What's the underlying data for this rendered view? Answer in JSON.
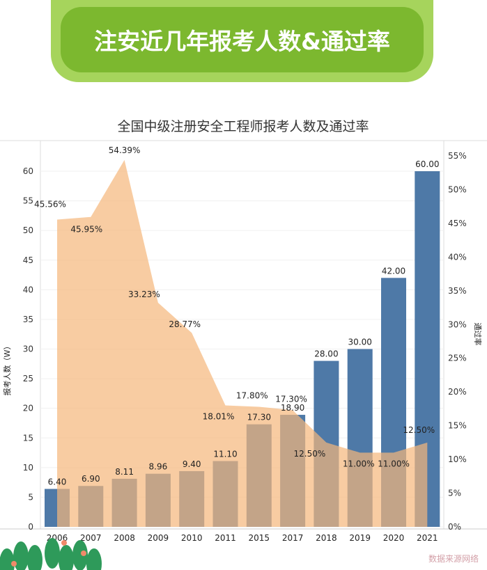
{
  "banner": {
    "title": "注安近几年报考人数&通过率"
  },
  "source": "数据来源网络",
  "chart_data": {
    "type": "bar+area",
    "title": "全国中级注册安全工程师报考人数及通过率",
    "categories": [
      "2006",
      "2007",
      "2008",
      "2009",
      "2010",
      "2011",
      "2015",
      "2017",
      "2018",
      "2019",
      "2020",
      "2021"
    ],
    "series": [
      {
        "name": "报考人数（W）",
        "type": "bar",
        "axis": "left",
        "color": "#4e79a7",
        "values": [
          6.4,
          6.9,
          8.11,
          8.96,
          9.4,
          11.1,
          17.3,
          18.9,
          28.0,
          30.0,
          42.0,
          60.0
        ],
        "labels": [
          "6.40",
          "6.90",
          "8.11",
          "8.96",
          "9.40",
          "11.10",
          "17.30",
          "18.90",
          "28.00",
          "30.00",
          "42.00",
          "60.00"
        ]
      },
      {
        "name": "通过率",
        "type": "area",
        "axis": "right",
        "color": "#f5b77a",
        "values": [
          45.56,
          45.95,
          54.39,
          33.23,
          28.77,
          18.01,
          17.8,
          17.3,
          12.5,
          11.0,
          11.0,
          12.5
        ],
        "labels": [
          "45.56%",
          "45.95%",
          "54.39%",
          "33.23%",
          "28.77%",
          "18.01%",
          "17.80%",
          "17.30%",
          "12.50%",
          "11.00%",
          "11.00%",
          "12.50%"
        ]
      }
    ],
    "ylabel": "报考人数（W）",
    "y2label": "通过率",
    "ylim": [
      0,
      60
    ],
    "yticks": [
      "0",
      "5",
      "10",
      "15",
      "20",
      "25",
      "30",
      "35",
      "40",
      "45",
      "50",
      "55",
      "60"
    ],
    "y2lim": [
      0,
      55
    ],
    "y2ticks": [
      "0%",
      "5%",
      "10%",
      "15%",
      "20%",
      "25%",
      "30%",
      "35%",
      "40%",
      "45%",
      "50%",
      "55%"
    ],
    "grid": true
  }
}
